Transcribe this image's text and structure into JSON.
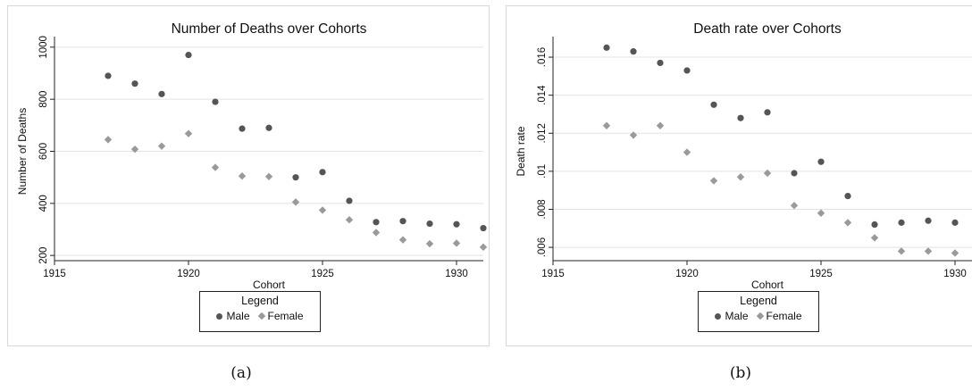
{
  "chart_data": [
    {
      "type": "scatter",
      "title": "Number of Deaths over Cohorts",
      "xlabel": "Cohort",
      "ylabel": "Number of Deaths",
      "xlim": [
        1915,
        1931
      ],
      "ylim": [
        180,
        1020
      ],
      "x_ticks": [
        1915,
        1920,
        1925,
        1930
      ],
      "y_ticks": [
        200,
        400,
        600,
        800,
        1000
      ],
      "y_tick_labels": [
        "200",
        "400",
        "600",
        "800",
        "1000"
      ],
      "grid": true,
      "legend": {
        "title": "Legend",
        "position": "bottom"
      },
      "series": [
        {
          "name": "Male",
          "marker": "circle",
          "color": "#555555",
          "x": [
            1917,
            1918,
            1919,
            1920,
            1921,
            1922,
            1923,
            1924,
            1925,
            1926,
            1927,
            1928,
            1929,
            1930,
            1931
          ],
          "y": [
            890,
            860,
            820,
            970,
            790,
            687,
            690,
            500,
            520,
            410,
            328,
            332,
            322,
            320,
            305
          ]
        },
        {
          "name": "Female",
          "marker": "diamond",
          "color": "#9a9a9a",
          "x": [
            1917,
            1918,
            1919,
            1920,
            1921,
            1922,
            1923,
            1924,
            1925,
            1926,
            1927,
            1928,
            1929,
            1930,
            1931
          ],
          "y": [
            645,
            608,
            620,
            668,
            538,
            505,
            503,
            405,
            374,
            337,
            288,
            260,
            245,
            247,
            232
          ]
        }
      ]
    },
    {
      "type": "scatter",
      "title": "Death rate over Cohorts",
      "xlabel": "Cohort",
      "ylabel": "Death rate",
      "xlim": [
        1915,
        1931
      ],
      "ylim": [
        0.0053,
        0.0168
      ],
      "x_ticks": [
        1915,
        1920,
        1925,
        1930
      ],
      "y_ticks": [
        0.006,
        0.008,
        0.01,
        0.012,
        0.014,
        0.016
      ],
      "y_tick_labels": [
        ".006",
        ".008",
        ".01",
        ".012",
        ".014",
        ".016"
      ],
      "grid": true,
      "legend": {
        "title": "Legend",
        "position": "bottom"
      },
      "series": [
        {
          "name": "Male",
          "marker": "circle",
          "color": "#555555",
          "x": [
            1917,
            1918,
            1919,
            1920,
            1921,
            1922,
            1923,
            1924,
            1925,
            1926,
            1927,
            1928,
            1929,
            1930,
            1931
          ],
          "y": [
            0.0165,
            0.0163,
            0.0157,
            0.0153,
            0.0135,
            0.0128,
            0.0131,
            0.0099,
            0.0105,
            0.0087,
            0.0072,
            0.0073,
            0.0074,
            0.0073,
            0.0071
          ]
        },
        {
          "name": "Female",
          "marker": "diamond",
          "color": "#9a9a9a",
          "x": [
            1917,
            1918,
            1919,
            1920,
            1921,
            1922,
            1923,
            1924,
            1925,
            1926,
            1927,
            1928,
            1929,
            1930,
            1931
          ],
          "y": [
            0.0124,
            0.0119,
            0.0124,
            0.011,
            0.0095,
            0.0097,
            0.0099,
            0.0082,
            0.0078,
            0.0073,
            0.0065,
            0.0058,
            0.0058,
            0.0057,
            0.0056
          ]
        }
      ]
    }
  ],
  "captions": [
    "(a)",
    "(b)"
  ]
}
